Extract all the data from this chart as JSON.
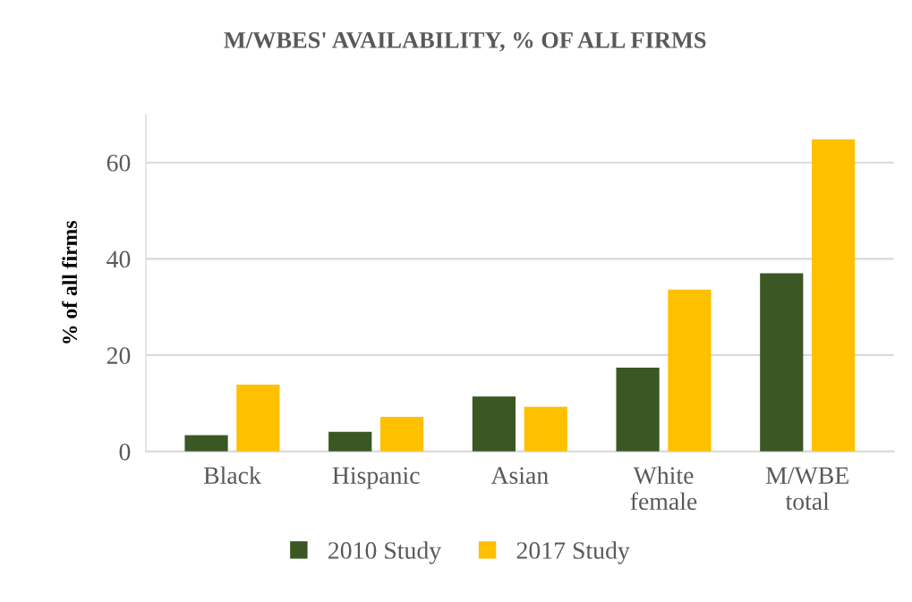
{
  "chart_data": {
    "type": "bar",
    "title": "M/WBES' AVAILABILITY, % OF ALL FIRMS",
    "ylabel": "% of all firms",
    "categories": [
      "Black",
      "Hispanic",
      "Asian",
      "White\nfemale",
      "M/WBE\ntotal"
    ],
    "series": [
      {
        "name": "2010 Study",
        "color": "#3b5724",
        "values": [
          3.4,
          4.1,
          11.4,
          17.4,
          37.0
        ]
      },
      {
        "name": "2017 Study",
        "color": "#ffc000",
        "values": [
          13.9,
          7.2,
          9.3,
          33.6,
          64.8
        ]
      }
    ],
    "ylim": [
      0,
      70
    ],
    "yticks": [
      0,
      20,
      40,
      60
    ],
    "grid": "y",
    "legend": "bottom"
  }
}
